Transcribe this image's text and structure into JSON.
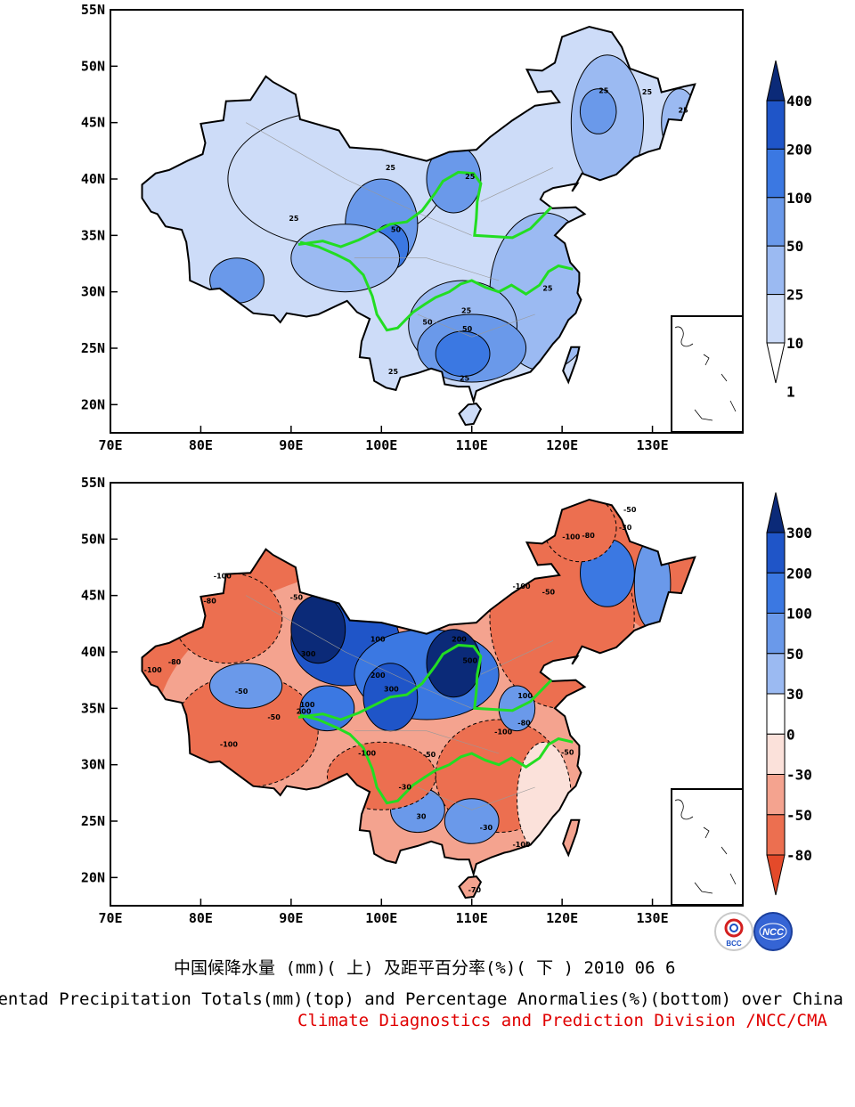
{
  "top_map": {
    "lat_labels": [
      "55N",
      "50N",
      "45N",
      "40N",
      "35N",
      "30N",
      "25N",
      "20N"
    ],
    "lon_labels": [
      "70E",
      "80E",
      "90E",
      "100E",
      "110E",
      "120E",
      "130E"
    ],
    "colorbar": {
      "labels": [
        "400",
        "200",
        "100",
        "50",
        "25",
        "10",
        "1"
      ],
      "colors": [
        "#0b2a78",
        "#1f55c8",
        "#3b78e2",
        "#6a99ea",
        "#9bbaf2",
        "#cddcf8",
        "#ffffff"
      ]
    },
    "contour_labels": [
      {
        "text": "25",
        "lon": 101.0,
        "lat": 40.8
      },
      {
        "text": "25",
        "lon": 90.3,
        "lat": 36.3
      },
      {
        "text": "25",
        "lon": 109.8,
        "lat": 40.0
      },
      {
        "text": "25",
        "lon": 124.6,
        "lat": 47.6
      },
      {
        "text": "25",
        "lon": 129.4,
        "lat": 47.5
      },
      {
        "text": "25",
        "lon": 133.4,
        "lat": 45.9
      },
      {
        "text": "50",
        "lon": 109.5,
        "lat": 26.5
      },
      {
        "text": "50",
        "lon": 105.1,
        "lat": 27.1
      },
      {
        "text": "25",
        "lon": 109.4,
        "lat": 28.1
      },
      {
        "text": "25",
        "lon": 118.4,
        "lat": 30.1
      },
      {
        "text": "25",
        "lon": 109.2,
        "lat": 22.1
      },
      {
        "text": "25",
        "lon": 101.3,
        "lat": 22.7
      },
      {
        "text": "50",
        "lon": 101.6,
        "lat": 35.3
      }
    ]
  },
  "bottom_map": {
    "lat_labels": [
      "55N",
      "50N",
      "45N",
      "40N",
      "35N",
      "30N",
      "25N",
      "20N"
    ],
    "lon_labels": [
      "70E",
      "80E",
      "90E",
      "100E",
      "110E",
      "120E",
      "130E"
    ],
    "colorbar": {
      "labels": [
        "300",
        "200",
        "100",
        "50",
        "30",
        "0",
        "-30",
        "-50",
        "-80"
      ],
      "colors": [
        "#0b2a78",
        "#1f55c8",
        "#3b78e2",
        "#6a99ea",
        "#9bbaf2",
        "#ffffff",
        "#fbe1da",
        "#f4a38f",
        "#ec6f50",
        "#e44a2a"
      ]
    },
    "contour_labels": [
      {
        "text": "-100",
        "lon": 121.0,
        "lat": 50.0
      },
      {
        "text": "-80",
        "lon": 122.9,
        "lat": 50.1
      },
      {
        "text": "-30",
        "lon": 127.0,
        "lat": 50.8
      },
      {
        "text": "-50",
        "lon": 127.5,
        "lat": 52.4
      },
      {
        "text": "-100",
        "lon": 115.5,
        "lat": 45.6
      },
      {
        "text": "-50",
        "lon": 118.5,
        "lat": 45.1
      },
      {
        "text": "-100",
        "lon": 82.4,
        "lat": 46.5
      },
      {
        "text": "-80",
        "lon": 81.0,
        "lat": 44.3
      },
      {
        "text": "-50",
        "lon": 90.6,
        "lat": 44.6
      },
      {
        "text": "300",
        "lon": 91.9,
        "lat": 39.6
      },
      {
        "text": "100",
        "lon": 99.6,
        "lat": 40.9
      },
      {
        "text": "200",
        "lon": 108.6,
        "lat": 40.9
      },
      {
        "text": "500",
        "lon": 109.8,
        "lat": 39.0
      },
      {
        "text": "200",
        "lon": 99.6,
        "lat": 37.7
      },
      {
        "text": "300",
        "lon": 101.1,
        "lat": 36.5
      },
      {
        "text": "100",
        "lon": 91.8,
        "lat": 35.1
      },
      {
        "text": "200",
        "lon": 91.4,
        "lat": 34.5
      },
      {
        "text": "-50",
        "lon": 84.5,
        "lat": 36.3
      },
      {
        "text": "-100",
        "lon": 83.1,
        "lat": 31.6
      },
      {
        "text": "-100",
        "lon": 98.4,
        "lat": 30.8
      },
      {
        "text": "-50",
        "lon": 105.3,
        "lat": 30.7
      },
      {
        "text": "-100",
        "lon": 113.5,
        "lat": 32.7
      },
      {
        "text": "-80",
        "lon": 115.8,
        "lat": 33.5
      },
      {
        "text": "-50",
        "lon": 120.6,
        "lat": 30.9
      },
      {
        "text": "-30",
        "lon": 102.6,
        "lat": 27.8
      },
      {
        "text": "30",
        "lon": 104.4,
        "lat": 25.2
      },
      {
        "text": "-100",
        "lon": 74.7,
        "lat": 38.2
      },
      {
        "text": "-80",
        "lon": 77.1,
        "lat": 38.9
      },
      {
        "text": "-50",
        "lon": 88.1,
        "lat": 34.0
      },
      {
        "text": "100",
        "lon": 115.9,
        "lat": 35.9
      },
      {
        "text": "-30",
        "lon": 111.6,
        "lat": 24.2
      },
      {
        "text": "-100",
        "lon": 115.5,
        "lat": 22.7
      },
      {
        "text": "-70",
        "lon": 110.3,
        "lat": 18.7
      }
    ]
  },
  "caption": {
    "line1": "中国候降水量 (mm)( 上) 及距平百分率(%)( 下 ) 2010 06 6",
    "line2": "Pentad Precipitation Totals(mm)(top) and Percentage Anormalies(%)(bottom) over China",
    "line3": "Climate Diagnostics and Prediction Division /NCC/CMA",
    "logo1": "BCC",
    "logo2": "NCC"
  }
}
